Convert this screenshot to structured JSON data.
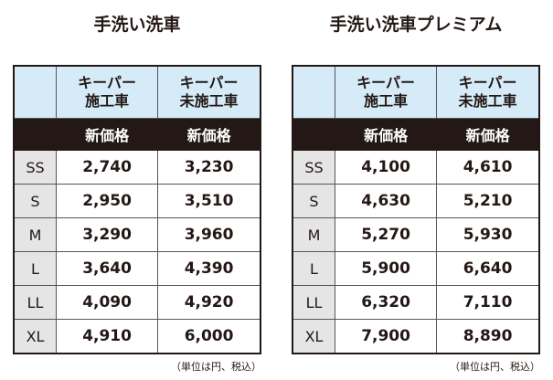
{
  "tables": [
    {
      "title": "手洗い洗車",
      "columns": [
        "キーパー\n施工車",
        "キーパー\n未施工車"
      ],
      "subheader": "新価格",
      "rows": [
        [
          "SS",
          "2,740",
          "3,230"
        ],
        [
          "S",
          "2,950",
          "3,510"
        ],
        [
          "M",
          "3,290",
          "3,960"
        ],
        [
          "L",
          "3,640",
          "4,390"
        ],
        [
          "LL",
          "4,090",
          "4,920"
        ],
        [
          "XL",
          "4,910",
          "6,000"
        ]
      ],
      "note": "（単位は円、税込）"
    },
    {
      "title": "手洗い洗車プレミアム",
      "columns": [
        "キーパー\n施工車",
        "キーパー\n未施工車"
      ],
      "subheader": "新価格",
      "rows": [
        [
          "SS",
          "4,100",
          "4,610"
        ],
        [
          "S",
          "4,630",
          "5,210"
        ],
        [
          "M",
          "5,270",
          "5,930"
        ],
        [
          "L",
          "5,900",
          "6,640"
        ],
        [
          "LL",
          "6,320",
          "7,110"
        ],
        [
          "XL",
          "7,900",
          "8,890"
        ]
      ],
      "note": "（単位は円、税込）"
    }
  ],
  "colors": {
    "header_bg": "#d5ecf8",
    "subheader_bg": "#231815",
    "size_bg": "#e5e5e5"
  }
}
